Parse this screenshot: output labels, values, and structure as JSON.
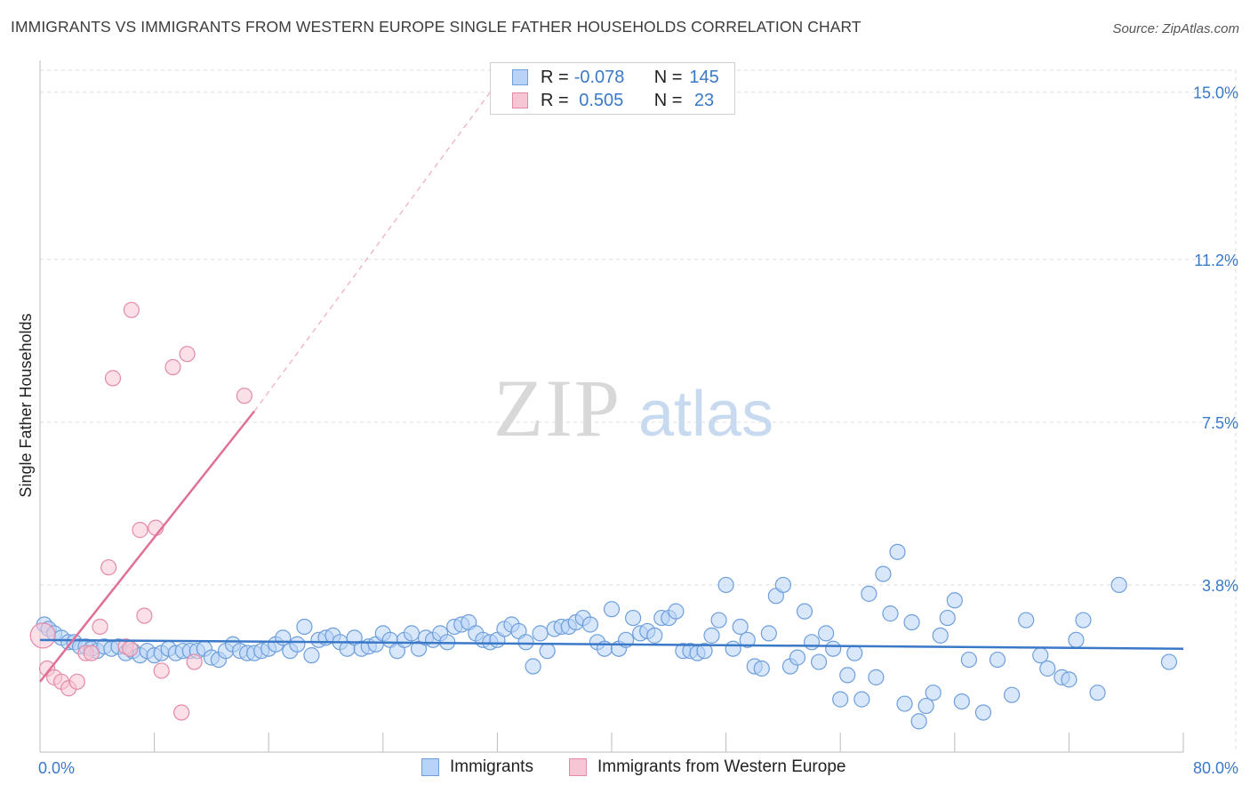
{
  "title": "IMMIGRANTS VS IMMIGRANTS FROM WESTERN EUROPE SINGLE FATHER HOUSEHOLDS CORRELATION CHART",
  "source": "Source: ZipAtlas.com",
  "watermark": {
    "zip": "ZIP",
    "atlas": "atlas"
  },
  "colors": {
    "blue": "#3a78c8",
    "blue_fill": "#b8d3f5",
    "pink": "#e07098",
    "pink_fill": "#f7c6d4",
    "grid": "#dddddd"
  },
  "legend": {
    "rows": [
      {
        "r_label": "R =",
        "r_value": "-0.078",
        "n_label": "N =",
        "n_value": "145"
      },
      {
        "r_label": "R =",
        "r_value": " 0.505",
        "n_label": "N =",
        "n_value": " 23"
      }
    ]
  },
  "bottom_legend": [
    "Immigrants",
    "Immigrants from Western Europe"
  ],
  "chart_data": {
    "type": "scatter",
    "title": "IMMIGRANTS VS IMMIGRANTS FROM WESTERN EUROPE SINGLE FATHER HOUSEHOLDS CORRELATION CHART",
    "xlabel": "",
    "ylabel": "Single Father Households",
    "xlim": [
      0,
      80
    ],
    "ylim": [
      0,
      15.5
    ],
    "x_tick_labels": [
      "0.0%",
      "80.0%"
    ],
    "y_ticks": [
      3.8,
      7.5,
      11.2,
      15.0
    ],
    "y_tick_labels": [
      "3.8%",
      "7.5%",
      "11.2%",
      "15.0%"
    ],
    "grid": true,
    "series": [
      {
        "name": "Immigrants",
        "color": "#3a78c8",
        "r": -0.078,
        "n": 145,
        "trend": {
          "x": [
            0,
            80
          ],
          "y": [
            2.55,
            2.35
          ]
        },
        "points": [
          [
            0.3,
            2.9
          ],
          [
            0.6,
            2.8
          ],
          [
            1.0,
            2.7
          ],
          [
            1.5,
            2.6
          ],
          [
            2.0,
            2.5
          ],
          [
            2.4,
            2.5
          ],
          [
            2.8,
            2.4
          ],
          [
            3.2,
            2.4
          ],
          [
            3.6,
            2.35
          ],
          [
            4.0,
            2.3
          ],
          [
            4.5,
            2.4
          ],
          [
            5.0,
            2.35
          ],
          [
            5.5,
            2.4
          ],
          [
            6.0,
            2.25
          ],
          [
            6.5,
            2.3
          ],
          [
            7.0,
            2.2
          ],
          [
            7.5,
            2.3
          ],
          [
            8.0,
            2.2
          ],
          [
            8.5,
            2.25
          ],
          [
            9.0,
            2.35
          ],
          [
            9.5,
            2.25
          ],
          [
            10.0,
            2.3
          ],
          [
            10.5,
            2.3
          ],
          [
            11.0,
            2.3
          ],
          [
            11.5,
            2.35
          ],
          [
            12.0,
            2.15
          ],
          [
            12.5,
            2.1
          ],
          [
            13.0,
            2.3
          ],
          [
            13.5,
            2.45
          ],
          [
            14.0,
            2.3
          ],
          [
            14.5,
            2.25
          ],
          [
            15.0,
            2.25
          ],
          [
            15.5,
            2.3
          ],
          [
            16.0,
            2.35
          ],
          [
            16.5,
            2.45
          ],
          [
            17.0,
            2.6
          ],
          [
            17.5,
            2.3
          ],
          [
            18.0,
            2.45
          ],
          [
            18.5,
            2.85
          ],
          [
            19.0,
            2.2
          ],
          [
            19.5,
            2.55
          ],
          [
            20.0,
            2.6
          ],
          [
            20.5,
            2.65
          ],
          [
            21.0,
            2.5
          ],
          [
            21.5,
            2.35
          ],
          [
            22.0,
            2.6
          ],
          [
            22.5,
            2.35
          ],
          [
            23.0,
            2.4
          ],
          [
            23.5,
            2.45
          ],
          [
            24.0,
            2.7
          ],
          [
            24.5,
            2.55
          ],
          [
            25.0,
            2.3
          ],
          [
            25.5,
            2.55
          ],
          [
            26.0,
            2.7
          ],
          [
            26.5,
            2.35
          ],
          [
            27.0,
            2.6
          ],
          [
            27.5,
            2.55
          ],
          [
            28.0,
            2.7
          ],
          [
            28.5,
            2.5
          ],
          [
            29.0,
            2.85
          ],
          [
            29.5,
            2.9
          ],
          [
            30.0,
            2.95
          ],
          [
            30.5,
            2.7
          ],
          [
            31.0,
            2.55
          ],
          [
            31.5,
            2.5
          ],
          [
            32.0,
            2.55
          ],
          [
            32.5,
            2.8
          ],
          [
            33.0,
            2.9
          ],
          [
            33.5,
            2.75
          ],
          [
            34.0,
            2.5
          ],
          [
            34.5,
            1.95
          ],
          [
            35.0,
            2.7
          ],
          [
            35.5,
            2.3
          ],
          [
            36.0,
            2.8
          ],
          [
            36.5,
            2.85
          ],
          [
            37.0,
            2.85
          ],
          [
            37.5,
            2.95
          ],
          [
            38.0,
            3.05
          ],
          [
            38.5,
            2.9
          ],
          [
            39.0,
            2.5
          ],
          [
            39.5,
            2.35
          ],
          [
            40.0,
            3.25
          ],
          [
            40.5,
            2.35
          ],
          [
            41.0,
            2.55
          ],
          [
            41.5,
            3.05
          ],
          [
            42.0,
            2.7
          ],
          [
            42.5,
            2.75
          ],
          [
            43.0,
            2.65
          ],
          [
            43.5,
            3.05
          ],
          [
            44.0,
            3.05
          ],
          [
            44.5,
            3.2
          ],
          [
            45.0,
            2.3
          ],
          [
            45.5,
            2.3
          ],
          [
            46.0,
            2.25
          ],
          [
            46.5,
            2.3
          ],
          [
            47.0,
            2.65
          ],
          [
            47.5,
            3.0
          ],
          [
            48.0,
            3.8
          ],
          [
            48.5,
            2.35
          ],
          [
            49.0,
            2.85
          ],
          [
            49.5,
            2.55
          ],
          [
            50.0,
            1.95
          ],
          [
            50.5,
            1.9
          ],
          [
            51.0,
            2.7
          ],
          [
            51.5,
            3.55
          ],
          [
            52.0,
            3.8
          ],
          [
            52.5,
            1.95
          ],
          [
            53.0,
            2.15
          ],
          [
            53.5,
            3.2
          ],
          [
            54.0,
            2.5
          ],
          [
            54.5,
            2.05
          ],
          [
            55.0,
            2.7
          ],
          [
            55.5,
            2.35
          ],
          [
            56.0,
            1.2
          ],
          [
            56.5,
            1.75
          ],
          [
            57.0,
            2.25
          ],
          [
            57.5,
            1.2
          ],
          [
            58.0,
            3.6
          ],
          [
            58.5,
            1.7
          ],
          [
            59.0,
            4.05
          ],
          [
            59.5,
            3.15
          ],
          [
            60.0,
            4.55
          ],
          [
            60.5,
            1.1
          ],
          [
            61.0,
            2.95
          ],
          [
            61.5,
            0.7
          ],
          [
            62.0,
            1.05
          ],
          [
            62.5,
            1.35
          ],
          [
            63.0,
            2.65
          ],
          [
            63.5,
            3.05
          ],
          [
            64.0,
            3.45
          ],
          [
            64.5,
            1.15
          ],
          [
            65.0,
            2.1
          ],
          [
            66.0,
            0.9
          ],
          [
            67.0,
            2.1
          ],
          [
            68.0,
            1.3
          ],
          [
            69.0,
            3.0
          ],
          [
            70.0,
            2.2
          ],
          [
            70.5,
            1.9
          ],
          [
            71.5,
            1.7
          ],
          [
            72.0,
            1.65
          ],
          [
            72.5,
            2.55
          ],
          [
            73.0,
            3.0
          ],
          [
            74.0,
            1.35
          ],
          [
            75.5,
            3.8
          ],
          [
            79.0,
            2.05
          ]
        ]
      },
      {
        "name": "Immigrants from Western Europe",
        "color": "#e07098",
        "r": 0.505,
        "n": 23,
        "trend": {
          "x": [
            0,
            15.0
          ],
          "y": [
            1.6,
            7.75
          ]
        },
        "trend_extended": {
          "x": [
            15.0,
            31.5
          ],
          "y": [
            7.75,
            15.0
          ]
        },
        "points": [
          [
            0.2,
            2.65
          ],
          [
            0.5,
            1.9
          ],
          [
            1.0,
            1.7
          ],
          [
            1.5,
            1.6
          ],
          [
            2.0,
            1.45
          ],
          [
            2.6,
            1.6
          ],
          [
            3.2,
            2.25
          ],
          [
            3.6,
            2.25
          ],
          [
            4.2,
            2.85
          ],
          [
            4.8,
            4.2
          ],
          [
            5.1,
            8.5
          ],
          [
            6.0,
            2.4
          ],
          [
            6.4,
            10.05
          ],
          [
            7.0,
            5.05
          ],
          [
            7.3,
            3.1
          ],
          [
            8.1,
            5.1
          ],
          [
            8.5,
            1.85
          ],
          [
            9.3,
            8.75
          ],
          [
            9.9,
            0.9
          ],
          [
            10.3,
            9.05
          ],
          [
            10.8,
            2.05
          ],
          [
            14.3,
            8.1
          ],
          [
            6.3,
            2.35
          ]
        ]
      }
    ]
  }
}
